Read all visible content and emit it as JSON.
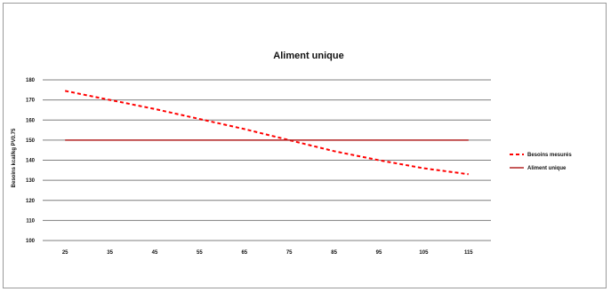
{
  "chart_data": {
    "type": "line",
    "title": "Aliment unique",
    "ylabel": "Besoins kcal/kg PV0.75",
    "xlabel": "",
    "ylim": [
      100,
      180
    ],
    "y_ticks": [
      100,
      110,
      120,
      130,
      140,
      150,
      160,
      170,
      180
    ],
    "x": [
      25,
      35,
      45,
      55,
      65,
      75,
      85,
      95,
      105,
      115
    ],
    "x_tick_labels": [
      "25",
      "35",
      "45",
      "55",
      "65",
      "75",
      "85",
      "95",
      "105",
      "115"
    ],
    "grid": "horizontal",
    "legend_position": "right",
    "series": [
      {
        "name": "Besoins mesurés",
        "style": "dashed",
        "color": "#ff0000",
        "values": [
          174.5,
          170,
          165.5,
          160.5,
          155.5,
          150,
          144.5,
          140,
          136,
          133
        ]
      },
      {
        "name": "Aliment unique",
        "style": "solid",
        "color": "#b22222",
        "values": [
          150,
          150,
          150,
          150,
          150,
          150,
          150,
          150,
          150,
          150
        ]
      }
    ],
    "colors": {
      "grid": "#7f7f7f",
      "axis": "#7f7f7f"
    }
  }
}
